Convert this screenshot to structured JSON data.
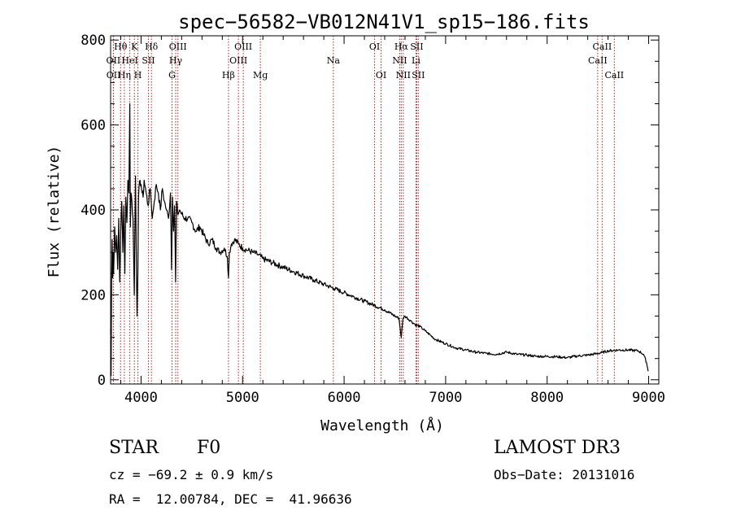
{
  "chart_data": {
    "type": "line",
    "title": "spec−56582−VB012N41V1_sp15−186.fits",
    "xlabel": "Wavelength (Å)",
    "ylabel": "Flux (relative)",
    "xlim": [
      3700,
      9100
    ],
    "ylim": [
      -10,
      810
    ],
    "xticks": [
      4000,
      5000,
      6000,
      7000,
      8000,
      9000
    ],
    "yticks": [
      0,
      200,
      400,
      600,
      800
    ],
    "grid": false,
    "series": [
      {
        "name": "spectrum",
        "x": [
          3700,
          3705,
          3710,
          3715,
          3720,
          3725,
          3730,
          3740,
          3750,
          3760,
          3770,
          3780,
          3790,
          3800,
          3810,
          3820,
          3830,
          3840,
          3850,
          3860,
          3870,
          3880,
          3889,
          3895,
          3900,
          3910,
          3920,
          3933,
          3945,
          3960,
          3968,
          3975,
          3990,
          4000,
          4010,
          4020,
          4030,
          4050,
          4070,
          4090,
          4100,
          4110,
          4130,
          4150,
          4170,
          4190,
          4210,
          4230,
          4250,
          4270,
          4290,
          4300,
          4310,
          4320,
          4330,
          4340,
          4350,
          4360,
          4380,
          4400,
          4430,
          4460,
          4500,
          4540,
          4580,
          4620,
          4660,
          4700,
          4740,
          4780,
          4820,
          4850,
          4861,
          4870,
          4890,
          4920,
          4960,
          5000,
          5050,
          5100,
          5150,
          5200,
          5300,
          5400,
          5500,
          5600,
          5700,
          5800,
          5900,
          6000,
          6100,
          6200,
          6300,
          6400,
          6500,
          6540,
          6563,
          6580,
          6600,
          6650,
          6700,
          6750,
          6800,
          6850,
          6900,
          7000,
          7100,
          7200,
          7300,
          7400,
          7500,
          7600,
          7700,
          7800,
          7900,
          8000,
          8100,
          8200,
          8300,
          8400,
          8500,
          8540,
          8600,
          8700,
          8800,
          8900,
          8950,
          8980,
          8995
        ],
        "y": [
          120,
          10,
          230,
          330,
          240,
          300,
          250,
          360,
          300,
          340,
          260,
          380,
          230,
          350,
          420,
          300,
          410,
          250,
          430,
          370,
          470,
          440,
          650,
          360,
          440,
          420,
          380,
          200,
          480,
          150,
          250,
          430,
          470,
          460,
          440,
          430,
          470,
          440,
          410,
          450,
          420,
          380,
          420,
          460,
          440,
          400,
          450,
          420,
          400,
          380,
          440,
          260,
          430,
          350,
          410,
          230,
          420,
          390,
          400,
          390,
          380,
          380,
          370,
          350,
          360,
          340,
          320,
          330,
          310,
          300,
          310,
          290,
          240,
          300,
          320,
          330,
          320,
          310,
          305,
          300,
          295,
          285,
          275,
          265,
          255,
          245,
          235,
          225,
          215,
          205,
          195,
          185,
          175,
          165,
          150,
          145,
          100,
          145,
          150,
          140,
          130,
          125,
          115,
          105,
          95,
          85,
          75,
          70,
          65,
          62,
          60,
          65,
          60,
          58,
          55,
          55,
          54,
          52,
          56,
          58,
          62,
          64,
          68,
          70,
          70,
          68,
          60,
          40,
          20
        ]
      }
    ],
    "line_markers": [
      {
        "label": "Hθ",
        "wavelength": 3798,
        "row": 1
      },
      {
        "label": "OII",
        "wavelength": 3727,
        "row": 2
      },
      {
        "label": "OII",
        "wavelength": 3729,
        "row": 3
      },
      {
        "label": "Hη",
        "wavelength": 3835,
        "row": 3
      },
      {
        "label": "HeI",
        "wavelength": 3889,
        "row": 2
      },
      {
        "label": "K",
        "wavelength": 3934,
        "row": 1
      },
      {
        "label": "H",
        "wavelength": 3969,
        "row": 3
      },
      {
        "label": "SII",
        "wavelength": 4072,
        "row": 2
      },
      {
        "label": "Hδ",
        "wavelength": 4102,
        "row": 1
      },
      {
        "label": "G",
        "wavelength": 4305,
        "row": 3
      },
      {
        "label": "Hγ",
        "wavelength": 4341,
        "row": 2
      },
      {
        "label": "OIII",
        "wavelength": 4363,
        "row": 1
      },
      {
        "label": "Hβ",
        "wavelength": 4861,
        "row": 3
      },
      {
        "label": "OIII",
        "wavelength": 4959,
        "row": 2
      },
      {
        "label": "OIII",
        "wavelength": 5007,
        "row": 1
      },
      {
        "label": "Mg",
        "wavelength": 5175,
        "row": 3
      },
      {
        "label": "Na",
        "wavelength": 5894,
        "row": 2
      },
      {
        "label": "OI",
        "wavelength": 6300,
        "row": 1
      },
      {
        "label": "OI",
        "wavelength": 6364,
        "row": 3
      },
      {
        "label": "NII",
        "wavelength": 6548,
        "row": 2
      },
      {
        "label": "Hα",
        "wavelength": 6563,
        "row": 1
      },
      {
        "label": "NII",
        "wavelength": 6583,
        "row": 3
      },
      {
        "label": "SII",
        "wavelength": 6716,
        "row": 1
      },
      {
        "label": "Li",
        "wavelength": 6708,
        "row": 2
      },
      {
        "label": "SII",
        "wavelength": 6731,
        "row": 3
      },
      {
        "label": "CaII",
        "wavelength": 8498,
        "row": 2
      },
      {
        "label": "CaII",
        "wavelength": 8542,
        "row": 1
      },
      {
        "label": "CaII",
        "wavelength": 8662,
        "row": 3
      }
    ],
    "marker_color": "#b22222"
  },
  "info": {
    "class_label": "STAR",
    "subclass": "F0",
    "survey": "LAMOST DR3",
    "redshift": "cz = −69.2 ± 0.9 km/s",
    "obs_date": "Obs−Date: 20131016",
    "coords": "RA =  12.00784, DEC =  41.96636"
  }
}
